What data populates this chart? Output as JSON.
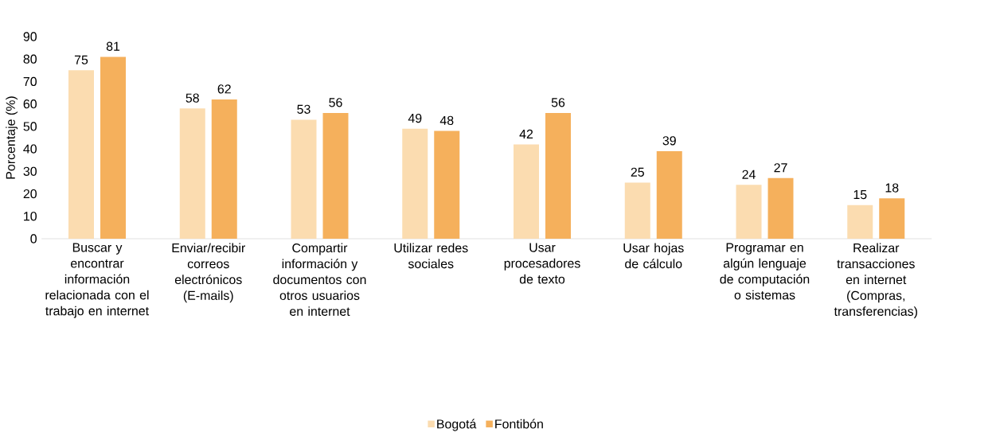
{
  "chart_data": {
    "type": "bar",
    "ylabel": "Porcentaje (%)",
    "categories": [
      "Buscar y encontrar información relacionada con el trabajo en internet",
      "Enviar/recibir correos electrónicos (E-mails)",
      "Compartir información y documentos con otros usuarios en internet",
      "Utilizar redes sociales",
      "Usar procesadores de texto",
      "Usar hojas de cálculo",
      "Programar en algún lenguaje de computación o sistemas",
      "Realizar transacciones en internet (Compras, transferencias)"
    ],
    "series": [
      {
        "name": "Bogotá",
        "color": "#fbdcb0",
        "values": [
          75,
          58,
          53,
          49,
          42,
          25,
          24,
          15
        ]
      },
      {
        "name": "Fontibón",
        "color": "#f5b05c",
        "values": [
          81,
          62,
          56,
          48,
          56,
          39,
          27,
          18
        ]
      }
    ],
    "ylim": [
      0,
      90
    ],
    "yticks": [
      0,
      10,
      20,
      30,
      40,
      50,
      60,
      70,
      80,
      90
    ],
    "data_labels": true,
    "legend": "bottom",
    "grid": false
  }
}
